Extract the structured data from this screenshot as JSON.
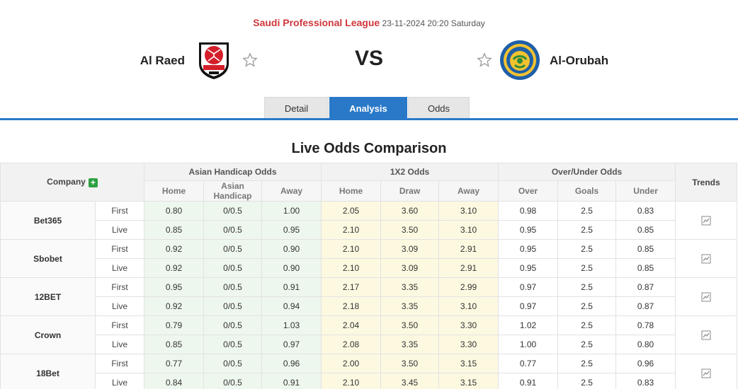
{
  "match": {
    "league": "Saudi Professional League",
    "datetime": "23-11-2024 20:20 Saturday",
    "home_team": "Al Raed",
    "away_team": "Al-Orubah",
    "vs_label": "VS",
    "home_logo_icon": "al-raed-crest-icon",
    "away_logo_icon": "al-orubah-crest-icon",
    "star_icon": "star-outline-icon"
  },
  "tabs": [
    {
      "label": "Detail",
      "active": false
    },
    {
      "label": "Analysis",
      "active": true
    },
    {
      "label": "Odds",
      "active": false
    }
  ],
  "section_title": "Live Odds Comparison",
  "table": {
    "company_header": "Company",
    "trends_header": "Trends",
    "groups": [
      "Asian Handicap Odds",
      "1X2 Odds",
      "Over/Under Odds"
    ],
    "subheaders": [
      "Home",
      "Asian Handicap",
      "Away",
      "Home",
      "Draw",
      "Away",
      "Over",
      "Goals",
      "Under"
    ],
    "rows": [
      {
        "company": "Bet365",
        "first": [
          "0.80",
          "0/0.5",
          "1.00",
          "2.05",
          "3.60",
          "3.10",
          "0.98",
          "2.5",
          "0.83"
        ],
        "live": [
          "0.85",
          "0/0.5",
          "0.95",
          "2.10",
          "3.50",
          "3.10",
          "0.95",
          "2.5",
          "0.85"
        ]
      },
      {
        "company": "Sbobet",
        "first": [
          "0.92",
          "0/0.5",
          "0.90",
          "2.10",
          "3.09",
          "2.91",
          "0.95",
          "2.5",
          "0.85"
        ],
        "live": [
          "0.92",
          "0/0.5",
          "0.90",
          "2.10",
          "3.09",
          "2.91",
          "0.95",
          "2.5",
          "0.85"
        ]
      },
      {
        "company": "12BET",
        "first": [
          "0.95",
          "0/0.5",
          "0.91",
          "2.17",
          "3.35",
          "2.99",
          "0.97",
          "2.5",
          "0.87"
        ],
        "live": [
          "0.92",
          "0/0.5",
          "0.94",
          "2.18",
          "3.35",
          "3.10",
          "0.97",
          "2.5",
          "0.87"
        ]
      },
      {
        "company": "Crown",
        "first": [
          "0.79",
          "0/0.5",
          "1.03",
          "2.04",
          "3.50",
          "3.30",
          "1.02",
          "2.5",
          "0.78"
        ],
        "live": [
          "0.85",
          "0/0.5",
          "0.97",
          "2.08",
          "3.35",
          "3.30",
          "1.00",
          "2.5",
          "0.80"
        ]
      },
      {
        "company": "18Bet",
        "first": [
          "0.77",
          "0/0.5",
          "0.96",
          "2.00",
          "3.50",
          "3.15",
          "0.77",
          "2.5",
          "0.96"
        ],
        "live": [
          "0.84",
          "0/0.5",
          "0.91",
          "2.10",
          "3.45",
          "3.15",
          "0.91",
          "2.5",
          "0.83"
        ]
      }
    ],
    "first_label": "First",
    "live_label": "Live",
    "plus_icon": "plus-icon",
    "trend_icon": "line-chart-icon"
  }
}
